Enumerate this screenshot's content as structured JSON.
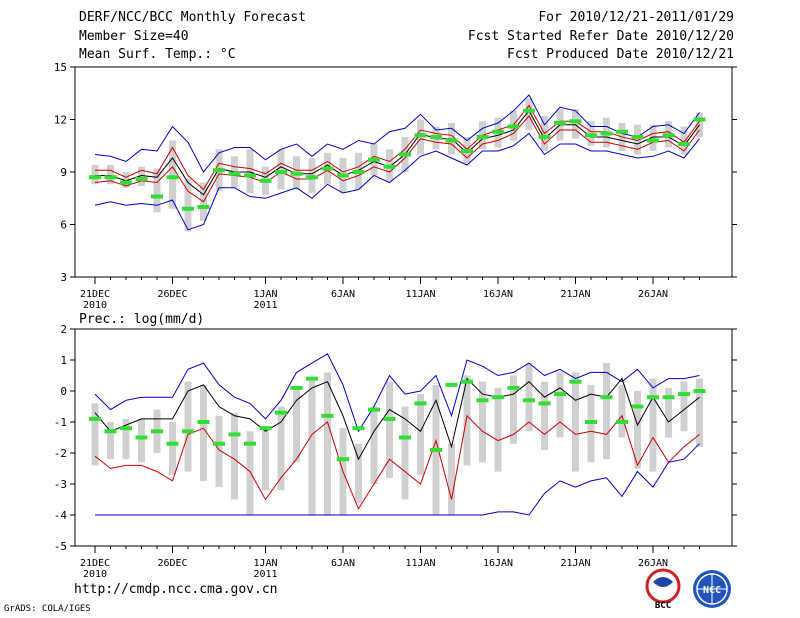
{
  "header": {
    "title": "DERF/NCC/BCC Monthly Forecast",
    "member_size": "Member Size=40",
    "variable": "Mean Surf. Temp.: °C",
    "forecast_period": "For 2010/12/21-2011/01/29",
    "started_refer_date": "Fcst Started Refer Date 2010/12/20",
    "produced_date": "Fcst Produced Date 2010/12/21"
  },
  "footer": {
    "url": "http://cmdp.ncc.cma.gov.cn",
    "credit": "GrADS: COLA/IGES",
    "logo_left_text": "BCC",
    "logo_right_text": "NCC"
  },
  "colors": {
    "upper_bound": "#0000cc",
    "lower_bound": "#0000cc",
    "ensemble_mean_band": "#cc0000",
    "mean": "#000000",
    "observation": "#33dd33",
    "spread_bar": "#d0d0d0"
  },
  "chart_data": [
    {
      "type": "line",
      "title": "Mean Surf. Temp.: °C",
      "xlabel": "",
      "ylabel": "",
      "ylim": [
        3,
        15
      ],
      "yticks": [
        3,
        6,
        9,
        12,
        15
      ],
      "x_tick_labels": [
        {
          "day": 0,
          "label": "21DEC",
          "sub": "2010"
        },
        {
          "day": 5,
          "label": "26DEC",
          "sub": ""
        },
        {
          "day": 11,
          "label": "1JAN",
          "sub": "2011"
        },
        {
          "day": 16,
          "label": "6JAN",
          "sub": ""
        },
        {
          "day": 21,
          "label": "11JAN",
          "sub": ""
        },
        {
          "day": 26,
          "label": "16JAN",
          "sub": ""
        },
        {
          "day": 31,
          "label": "21JAN",
          "sub": ""
        },
        {
          "day": 36,
          "label": "26JAN",
          "sub": ""
        }
      ],
      "days": 40,
      "series": [
        {
          "name": "max",
          "color": "#0000cc",
          "values": [
            10.0,
            9.9,
            9.6,
            10.3,
            10.2,
            11.6,
            10.7,
            9.0,
            10.1,
            10.4,
            10.4,
            9.7,
            10.3,
            10.6,
            9.9,
            10.6,
            10.3,
            10.8,
            10.6,
            11.3,
            11.5,
            12.3,
            11.4,
            11.5,
            10.8,
            11.5,
            11.8,
            12.5,
            13.4,
            11.7,
            12.7,
            12.5,
            11.6,
            11.6,
            11.2,
            11.0,
            11.6,
            11.7,
            11.2,
            12.4
          ]
        },
        {
          "name": "mean_upper",
          "color": "#cc0000",
          "values": [
            9.1,
            9.1,
            8.7,
            9.1,
            8.9,
            10.4,
            8.8,
            8.0,
            9.5,
            9.3,
            9.2,
            8.9,
            9.5,
            9.1,
            9.1,
            9.6,
            9.0,
            9.3,
            9.9,
            9.6,
            10.3,
            11.4,
            11.2,
            11.1,
            10.3,
            11.1,
            11.4,
            11.7,
            12.8,
            11.2,
            11.9,
            11.9,
            11.3,
            11.3,
            11.0,
            10.8,
            11.2,
            11.3,
            10.7,
            11.9
          ]
        },
        {
          "name": "mean",
          "color": "#000000",
          "values": [
            8.8,
            8.8,
            8.5,
            8.8,
            8.7,
            9.8,
            8.4,
            7.7,
            9.2,
            9.0,
            9.0,
            8.7,
            9.3,
            8.9,
            8.9,
            9.4,
            8.8,
            9.1,
            9.6,
            9.3,
            10.0,
            11.2,
            10.9,
            10.9,
            10.1,
            10.9,
            11.1,
            11.4,
            12.5,
            10.9,
            11.7,
            11.7,
            11.0,
            11.0,
            10.8,
            10.6,
            11.0,
            11.0,
            10.5,
            11.7
          ]
        },
        {
          "name": "mean_lower",
          "color": "#cc0000",
          "values": [
            8.4,
            8.5,
            8.2,
            8.5,
            8.4,
            9.3,
            7.9,
            7.3,
            8.9,
            8.8,
            8.7,
            8.4,
            9.0,
            8.6,
            8.6,
            9.1,
            8.5,
            8.8,
            9.3,
            9.0,
            9.8,
            10.9,
            10.7,
            10.6,
            9.8,
            10.6,
            10.8,
            11.2,
            12.2,
            10.6,
            11.4,
            11.4,
            10.7,
            10.7,
            10.5,
            10.3,
            10.7,
            10.8,
            10.2,
            11.4
          ]
        },
        {
          "name": "min",
          "color": "#0000cc",
          "values": [
            7.1,
            7.3,
            7.1,
            7.2,
            7.1,
            7.4,
            5.7,
            6.0,
            8.1,
            8.1,
            7.6,
            7.5,
            7.8,
            8.1,
            7.5,
            8.3,
            7.8,
            8.0,
            8.8,
            8.4,
            9.1,
            9.9,
            10.2,
            9.8,
            9.4,
            10.2,
            10.2,
            10.5,
            11.2,
            10.0,
            10.6,
            10.6,
            10.2,
            10.2,
            10.0,
            9.8,
            9.9,
            10.2,
            9.8,
            10.9
          ]
        },
        {
          "name": "observation",
          "color": "#33dd33",
          "values": [
            8.7,
            8.7,
            8.4,
            8.6,
            7.6,
            8.7,
            6.9,
            7.0,
            9.1,
            8.9,
            8.8,
            8.5,
            9.0,
            8.9,
            8.7,
            9.2,
            8.8,
            9.0,
            9.7,
            9.3,
            10.0,
            11.1,
            11.0,
            10.8,
            10.2,
            11.0,
            11.3,
            11.6,
            12.5,
            11.0,
            11.8,
            11.9,
            11.1,
            11.2,
            11.3,
            11.0,
            10.8,
            11.1,
            10.6,
            12.0
          ]
        }
      ],
      "spread_bars": [
        [
          8.3,
          9.4
        ],
        [
          8.3,
          9.4
        ],
        [
          8.1,
          9.0
        ],
        [
          8.2,
          9.3
        ],
        [
          6.7,
          9.2
        ],
        [
          6.9,
          10.8
        ],
        [
          5.6,
          8.6
        ],
        [
          6.2,
          8.4
        ],
        [
          7.9,
          10.3
        ],
        [
          8.1,
          9.9
        ],
        [
          7.8,
          10.3
        ],
        [
          7.7,
          9.3
        ],
        [
          8.0,
          10.3
        ],
        [
          8.0,
          9.9
        ],
        [
          7.8,
          9.8
        ],
        [
          8.3,
          10.1
        ],
        [
          7.8,
          9.8
        ],
        [
          8.0,
          10.1
        ],
        [
          8.8,
          10.6
        ],
        [
          8.5,
          10.3
        ],
        [
          9.0,
          11.0
        ],
        [
          10.0,
          12.0
        ],
        [
          10.3,
          11.6
        ],
        [
          10.0,
          11.8
        ],
        [
          9.5,
          11.0
        ],
        [
          10.3,
          11.9
        ],
        [
          10.4,
          12.1
        ],
        [
          10.8,
          12.5
        ],
        [
          11.4,
          13.2
        ],
        [
          10.2,
          12.2
        ],
        [
          10.8,
          12.6
        ],
        [
          10.9,
          12.6
        ],
        [
          10.5,
          11.9
        ],
        [
          10.4,
          12.1
        ],
        [
          10.2,
          11.8
        ],
        [
          10.0,
          11.7
        ],
        [
          10.2,
          11.7
        ],
        [
          10.4,
          11.9
        ],
        [
          10.0,
          11.6
        ],
        [
          11.0,
          12.4
        ]
      ]
    },
    {
      "type": "line",
      "title": "Prec.: log(mm/d)",
      "xlabel": "",
      "ylabel": "",
      "ylim": [
        -5,
        2
      ],
      "yticks": [
        -5,
        -4,
        -3,
        -2,
        -1,
        0,
        1,
        2
      ],
      "x_tick_labels": [
        {
          "day": 0,
          "label": "21DEC",
          "sub": "2010"
        },
        {
          "day": 5,
          "label": "26DEC",
          "sub": ""
        },
        {
          "day": 11,
          "label": "1JAN",
          "sub": "2011"
        },
        {
          "day": 16,
          "label": "6JAN",
          "sub": ""
        },
        {
          "day": 21,
          "label": "11JAN",
          "sub": ""
        },
        {
          "day": 26,
          "label": "16JAN",
          "sub": ""
        },
        {
          "day": 31,
          "label": "21JAN",
          "sub": ""
        },
        {
          "day": 36,
          "label": "26JAN",
          "sub": ""
        }
      ],
      "days": 40,
      "series": [
        {
          "name": "max",
          "color": "#0000cc",
          "values": [
            -0.1,
            -0.6,
            -0.3,
            -0.2,
            -0.2,
            -0.2,
            0.7,
            0.9,
            0.2,
            -0.2,
            -0.4,
            -0.9,
            -0.3,
            0.6,
            0.9,
            1.2,
            0.2,
            -1.3,
            -0.5,
            0.5,
            -0.1,
            0.0,
            0.5,
            -0.8,
            1.0,
            0.8,
            0.5,
            0.6,
            0.9,
            0.5,
            0.7,
            0.4,
            0.6,
            0.6,
            0.3,
            0.7,
            0.1,
            0.4,
            0.4,
            0.5
          ]
        },
        {
          "name": "mean_upper",
          "color": "#000000",
          "values": [
            -0.7,
            -1.3,
            -1.1,
            -0.9,
            -0.9,
            -0.9,
            0.0,
            0.2,
            -0.5,
            -0.8,
            -0.9,
            -1.3,
            -1.0,
            -0.3,
            0.1,
            0.3,
            -0.8,
            -2.2,
            -1.3,
            -0.6,
            -0.9,
            -1.3,
            -0.3,
            -1.8,
            0.4,
            -0.1,
            -0.2,
            -0.1,
            0.3,
            -0.2,
            0.1,
            -0.3,
            -0.1,
            -0.2,
            0.4,
            -1.1,
            -0.2,
            -1.0,
            -0.6,
            -0.2
          ]
        },
        {
          "name": "mean_lower",
          "color": "#cc0000",
          "values": [
            -2.1,
            -2.5,
            -2.4,
            -2.4,
            -2.6,
            -2.9,
            -1.4,
            -1.2,
            -1.9,
            -2.2,
            -2.6,
            -3.5,
            -2.8,
            -2.2,
            -1.4,
            -1.0,
            -2.6,
            -3.8,
            -3.0,
            -2.2,
            -2.6,
            -3.0,
            -1.6,
            -3.5,
            -0.8,
            -1.3,
            -1.6,
            -1.4,
            -1.0,
            -1.4,
            -1.0,
            -1.4,
            -1.3,
            -1.4,
            -0.8,
            -2.4,
            -1.5,
            -2.3,
            -1.8,
            -1.4
          ]
        },
        {
          "name": "min",
          "color": "#0000cc",
          "values": [
            -4.0,
            -4.0,
            -4.0,
            -4.0,
            -4.0,
            -4.0,
            -4.0,
            -4.0,
            -4.0,
            -4.0,
            -4.0,
            -4.0,
            -4.0,
            -4.0,
            -4.0,
            -4.0,
            -4.0,
            -4.0,
            -4.0,
            -4.0,
            -4.0,
            -4.0,
            -4.0,
            -4.0,
            -4.0,
            -4.0,
            -3.9,
            -3.9,
            -4.0,
            -3.3,
            -2.9,
            -3.1,
            -2.9,
            -2.8,
            -3.4,
            -2.6,
            -3.1,
            -2.3,
            -2.2,
            -1.7
          ]
        },
        {
          "name": "observation",
          "color": "#33dd33",
          "values": [
            -0.9,
            -1.3,
            -1.2,
            -1.5,
            -1.3,
            -1.7,
            -1.3,
            -1.0,
            -1.7,
            -1.4,
            -1.7,
            -1.2,
            -0.7,
            0.1,
            0.4,
            -0.8,
            -2.2,
            -1.2,
            -0.6,
            -0.9,
            -1.5,
            -0.4,
            -1.9,
            0.2,
            0.3,
            -0.3,
            -0.2,
            0.1,
            -0.3,
            -0.4,
            -0.1,
            0.3,
            -1.0,
            -0.2,
            -1.0,
            -0.5,
            -0.2,
            -0.2,
            -0.1,
            0.0
          ]
        }
      ],
      "spread_bars": [
        [
          -2.4,
          -0.4
        ],
        [
          -2.2,
          -1.0
        ],
        [
          -2.2,
          -0.9
        ],
        [
          -2.3,
          -0.9
        ],
        [
          -2.0,
          -0.6
        ],
        [
          -2.7,
          -1.0
        ],
        [
          -2.6,
          0.3
        ],
        [
          -2.9,
          0.2
        ],
        [
          -3.1,
          -0.8
        ],
        [
          -3.5,
          -0.7
        ],
        [
          -4.0,
          -1.3
        ],
        [
          -3.2,
          -1.2
        ],
        [
          -3.2,
          -0.5
        ],
        [
          -2.3,
          0.1
        ],
        [
          -4.0,
          0.4
        ],
        [
          -4.0,
          0.6
        ],
        [
          -4.0,
          -1.2
        ],
        [
          -3.6,
          -1.7
        ],
        [
          -3.0,
          -0.5
        ],
        [
          -2.8,
          0.3
        ],
        [
          -3.5,
          -0.5
        ],
        [
          -2.7,
          -0.1
        ],
        [
          -4.0,
          0.2
        ],
        [
          -4.0,
          -1.7
        ],
        [
          -2.4,
          0.5
        ],
        [
          -2.3,
          0.3
        ],
        [
          -2.6,
          0.1
        ],
        [
          -1.7,
          0.5
        ],
        [
          -1.3,
          0.9
        ],
        [
          -1.9,
          0.3
        ],
        [
          -1.5,
          0.6
        ],
        [
          -2.6,
          0.6
        ],
        [
          -2.3,
          0.2
        ],
        [
          -2.2,
          0.9
        ],
        [
          -1.5,
          0.2
        ],
        [
          -2.5,
          0.0
        ],
        [
          -2.6,
          0.4
        ],
        [
          -1.5,
          0.1
        ],
        [
          -1.3,
          0.3
        ],
        [
          -1.8,
          0.4
        ]
      ]
    }
  ]
}
